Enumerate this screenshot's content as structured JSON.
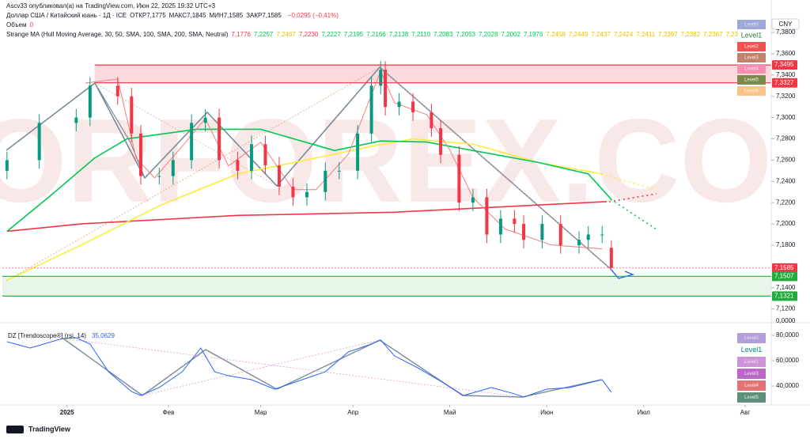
{
  "header": {
    "publisher": "Ascv33 опубликовал(а) на TradingView.com, Июн 22, 2025 19:32 UTC+3",
    "symbol": "Доллар США / Китайский юань · 1Д · ICE",
    "ohlc": [
      "ОТКР7,1775",
      "МАКС7,1845",
      "МИН7,1585",
      "ЗАКР7,1585"
    ],
    "change": "−0,0295 (−0,41%)",
    "volume_label": "Объем",
    "volume_value": "0",
    "indicator": "Strange MA (Hull Moving Average, 30, 50, SMA, 100, SMA, 200, SMA, Neutral)",
    "indicator_values": [
      {
        "text": "7,1776",
        "color": "#f23645"
      },
      {
        "text": "7,2257",
        "color": "#00c853"
      },
      {
        "text": "7,2467",
        "color": "#e6c200"
      },
      {
        "text": "7,2230",
        "color": "#f23645"
      },
      {
        "text": "7,2227",
        "color": "#00c853"
      },
      {
        "text": "7,2195",
        "color": "#00c853"
      },
      {
        "text": "7,2166",
        "color": "#00c853"
      },
      {
        "text": "7,2138",
        "color": "#00c853"
      },
      {
        "text": "7,2110",
        "color": "#00c853"
      },
      {
        "text": "7,2083",
        "color": "#00c853"
      },
      {
        "text": "7,2053",
        "color": "#00c853"
      },
      {
        "text": "7,2028",
        "color": "#00c853"
      },
      {
        "text": "7,2002",
        "color": "#00c853"
      },
      {
        "text": "7,1976",
        "color": "#00c853"
      },
      {
        "text": "7,2458",
        "color": "#e6c200"
      },
      {
        "text": "7,2449",
        "color": "#e6c200"
      },
      {
        "text": "7,2437",
        "color": "#e6c200"
      },
      {
        "text": "7,2424",
        "color": "#e6c200"
      },
      {
        "text": "7,2411",
        "color": "#e6c200"
      },
      {
        "text": "7,2397",
        "color": "#e6c200"
      },
      {
        "text": "7,2382",
        "color": "#e6c200"
      },
      {
        "text": "7,2367",
        "color": "#e6c200"
      },
      {
        "text": "7,2351",
        "color": "#e6c200"
      }
    ],
    "currency": "CNY",
    "footer": "TradingView",
    "watermark": "TORFOREX.COM"
  },
  "level_legend": [
    {
      "text": "Level0",
      "bg": "#9fa8da",
      "fg": "#e8eaf6"
    },
    {
      "text": "Level1",
      "bg": "#ffffff",
      "fg": "#2e7d32"
    },
    {
      "text": "Level2",
      "bg": "#ef5350",
      "fg": "#ffebee"
    },
    {
      "text": "Level3",
      "bg": "#c0836b",
      "fg": "#fbe9e7"
    },
    {
      "text": "Level4",
      "bg": "#f48fb1",
      "fg": "#fce4ec"
    },
    {
      "text": "Level5",
      "bg": "#7a8a4a",
      "fg": "#f1f8e9"
    },
    {
      "text": "Level6",
      "bg": "#f7c58a",
      "fg": "#fff3e0"
    }
  ],
  "rsi_level_legend": [
    {
      "text": "Level0",
      "bg": "#b39ddb",
      "fg": "#ede7f6"
    },
    {
      "text": "Level1",
      "bg": "#ffffff",
      "fg": "#00897b"
    },
    {
      "text": "Level2",
      "bg": "#ce93d8",
      "fg": "#f3e5f5"
    },
    {
      "text": "Level3",
      "bg": "#ba68c8",
      "fg": "#f3e5f5"
    },
    {
      "text": "Level4",
      "bg": "#e57373",
      "fg": "#ffebee"
    },
    {
      "text": "Level5",
      "bg": "#5f8f7a",
      "fg": "#e0f2f1"
    }
  ],
  "chart_data": [
    {
      "type": "candlestick",
      "up_color": "#089981",
      "down_color": "#f23645",
      "x": [
        0,
        7,
        15,
        18,
        24,
        27,
        29,
        33,
        36,
        40,
        43,
        46,
        50,
        53,
        56,
        59,
        62,
        65,
        69,
        72,
        76,
        79,
        81,
        82,
        85,
        88,
        92,
        94,
        98,
        101,
        104,
        107,
        110,
        112,
        116,
        120,
        124,
        126,
        129,
        131
      ],
      "open": [
        7.25,
        7.26,
        7.295,
        7.3,
        7.33,
        7.32,
        7.285,
        7.245,
        7.245,
        7.26,
        7.295,
        7.3,
        7.26,
        7.25,
        7.275,
        7.255,
        7.235,
        7.225,
        7.23,
        7.25,
        7.25,
        7.285,
        7.33,
        7.345,
        7.31,
        7.315,
        7.305,
        7.29,
        7.265,
        7.22,
        7.225,
        7.19,
        7.205,
        7.2,
        7.185,
        7.2,
        7.18,
        7.185,
        7.19,
        7.1775
      ],
      "high": [
        7.268,
        7.303,
        7.308,
        7.338,
        7.338,
        7.328,
        7.293,
        7.253,
        7.268,
        7.303,
        7.308,
        7.308,
        7.268,
        7.283,
        7.283,
        7.263,
        7.243,
        7.238,
        7.258,
        7.258,
        7.293,
        7.338,
        7.353,
        7.353,
        7.323,
        7.323,
        7.313,
        7.298,
        7.273,
        7.233,
        7.233,
        7.213,
        7.213,
        7.208,
        7.208,
        7.208,
        7.193,
        7.198,
        7.198,
        7.1845
      ],
      "low": [
        7.242,
        7.252,
        7.287,
        7.292,
        7.312,
        7.277,
        7.237,
        7.237,
        7.237,
        7.252,
        7.287,
        7.252,
        7.242,
        7.242,
        7.247,
        7.227,
        7.217,
        7.217,
        7.222,
        7.242,
        7.242,
        7.277,
        7.322,
        7.302,
        7.302,
        7.297,
        7.282,
        7.257,
        7.212,
        7.212,
        7.182,
        7.182,
        7.192,
        7.177,
        7.177,
        7.172,
        7.172,
        7.177,
        7.182,
        7.1585
      ],
      "close": [
        7.26,
        7.295,
        7.3,
        7.33,
        7.32,
        7.285,
        7.245,
        7.245,
        7.26,
        7.295,
        7.3,
        7.26,
        7.25,
        7.275,
        7.255,
        7.235,
        7.225,
        7.23,
        7.25,
        7.25,
        7.285,
        7.33,
        7.345,
        7.31,
        7.315,
        7.305,
        7.29,
        7.265,
        7.22,
        7.225,
        7.19,
        7.205,
        7.2,
        7.185,
        7.2,
        7.18,
        7.185,
        7.19,
        7.19,
        7.1585
      ],
      "overlays": [
        {
          "color": "#f23645",
          "width": 1.6,
          "x": [
            0,
            16,
            50,
            84,
            130
          ],
          "values": [
            7.193,
            7.2,
            7.208,
            7.211,
            7.221
          ]
        },
        {
          "color": "#ffeb3b",
          "width": 1.6,
          "x": [
            0,
            16,
            33,
            50,
            67,
            79,
            88,
            101,
            115,
            129
          ],
          "values": [
            7.147,
            7.18,
            7.217,
            7.247,
            7.262,
            7.273,
            7.28,
            7.275,
            7.258,
            7.247
          ]
        },
        {
          "color": "#00c853",
          "width": 1.6,
          "x": [
            0,
            9,
            19,
            26,
            41,
            55,
            71,
            81,
            91,
            101,
            115,
            126,
            131
          ],
          "values": [
            7.193,
            7.225,
            7.262,
            7.28,
            7.289,
            7.289,
            7.269,
            7.278,
            7.277,
            7.269,
            7.258,
            7.247,
            7.223
          ]
        },
        {
          "color": "#f77c80",
          "width": 1,
          "x": [
            17,
            24,
            28,
            32,
            38,
            43,
            48,
            55,
            62,
            67,
            74,
            81,
            84,
            91,
            96,
            101,
            108,
            118,
            129
          ],
          "values": [
            7.3325,
            7.3362,
            7.2619,
            7.2433,
            7.2731,
            7.2991,
            7.2545,
            7.2768,
            7.2322,
            7.2322,
            7.2656,
            7.3437,
            7.3139,
            7.3028,
            7.2694,
            7.2248,
            7.1951,
            7.1802,
            7.1765
          ]
        }
      ],
      "zones": [
        {
          "low": 7.3327,
          "high": 7.3495,
          "from": 19,
          "color": "#fadadd"
        },
        {
          "low": 7.1321,
          "high": 7.1507,
          "from": -1,
          "color": "#e8f5e9"
        }
      ],
      "levels": [
        {
          "value": 7.3495,
          "label": "7,3495",
          "color": "#f23645"
        },
        {
          "value": 7.3327,
          "label": "7,3327",
          "color": "#f23645"
        },
        {
          "value": 7.1585,
          "label": "7,1585",
          "color": "#f23645"
        },
        {
          "value": 7.1507,
          "label": "7,1507",
          "color": "#22ab3c"
        },
        {
          "value": 7.1321,
          "label": "7,1321",
          "color": "#22ab3c"
        }
      ],
      "xlim": [
        -1,
        166
      ],
      "ylim": [
        7.113,
        7.392
      ],
      "yticks": [
        {
          "value": 7.38,
          "label": "7,3800"
        },
        {
          "value": 7.36,
          "label": "7,3600"
        },
        {
          "value": 7.34,
          "label": "7,3400"
        },
        {
          "value": 7.32,
          "label": "7,3200"
        },
        {
          "value": 7.3,
          "label": "7,3000"
        },
        {
          "value": 7.28,
          "label": "7,2800"
        },
        {
          "value": 7.26,
          "label": "7,2600"
        },
        {
          "value": 7.24,
          "label": "7,2400"
        },
        {
          "value": 7.22,
          "label": "7,2200"
        },
        {
          "value": 7.2,
          "label": "7,2000"
        },
        {
          "value": 7.18,
          "label": "7,1800"
        },
        {
          "value": 7.14,
          "label": "7,1400"
        },
        {
          "value": 7.12,
          "label": "7,1200"
        }
      ],
      "volume_ticks": [
        {
          "value": 0,
          "label": "0,0000"
        }
      ],
      "xticks": [
        {
          "value": 13,
          "label": "2025"
        },
        {
          "value": 35,
          "label": "Фев"
        },
        {
          "value": 55,
          "label": "Мар"
        },
        {
          "value": 75,
          "label": "Апр"
        },
        {
          "value": 96,
          "label": "Май"
        },
        {
          "value": 117,
          "label": "Июн"
        },
        {
          "value": 138,
          "label": "Июл"
        },
        {
          "value": 160,
          "label": "Авг"
        }
      ]
    },
    {
      "type": "line",
      "title": "DZ [Trendoscope®] (rsi, 14)",
      "last_value_label": "35,0629",
      "color": "#2962ff",
      "x": [
        0,
        5,
        12,
        15,
        18,
        22,
        27,
        29,
        33,
        38,
        42,
        45,
        48,
        53,
        58,
        64,
        69,
        74,
        79,
        81,
        84,
        89,
        94,
        99,
        105,
        110,
        112,
        117,
        122,
        129,
        131
      ],
      "values": [
        75,
        70,
        77.5,
        78.1,
        73.1,
        51.3,
        35.6,
        32.5,
        38.8,
        51.3,
        70,
        51.3,
        48.1,
        45,
        37.5,
        45,
        51.3,
        66.9,
        73.1,
        76.3,
        63.8,
        54.4,
        43.8,
        32.5,
        38.8,
        33.8,
        31.3,
        37.5,
        38.8,
        45,
        35.0629
      ],
      "xlim": [
        -1,
        166
      ],
      "ylim": [
        29.4,
        85.6
      ],
      "yticks": [
        {
          "value": 80,
          "label": "80,0000"
        },
        {
          "value": 60,
          "label": "60,0000"
        },
        {
          "value": 40,
          "label": "40,0000"
        }
      ]
    }
  ]
}
